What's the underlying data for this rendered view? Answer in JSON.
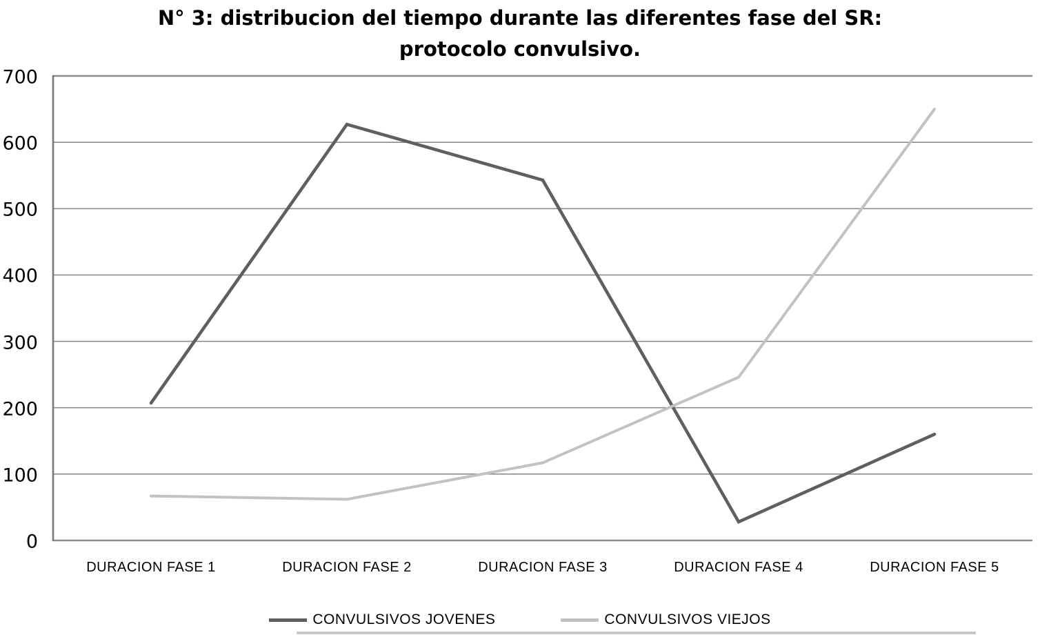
{
  "title": {
    "line1": "N° 3: distribucion del tiempo durante las diferentes fase del SR:",
    "line2": "protocolo convulsivo."
  },
  "chart_data": {
    "type": "line",
    "categories": [
      "DURACION FASE 1",
      "DURACION FASE 2",
      "DURACION FASE 3",
      "DURACION FASE 4",
      "DURACION FASE 5"
    ],
    "series": [
      {
        "name": "CONVULSIVOS JOVENES",
        "color": "#5f5f5f",
        "values": [
          207,
          627,
          543,
          28,
          160
        ]
      },
      {
        "name": "CONVULSIVOS VIEJOS",
        "color": "#c2c2c2",
        "values": [
          67,
          62,
          117,
          246,
          650
        ]
      }
    ],
    "yticks": [
      0,
      100,
      200,
      300,
      400,
      500,
      600,
      700
    ],
    "ylim": [
      0,
      700
    ],
    "xlabel": "",
    "ylabel": "",
    "grid": true,
    "legend_position": "bottom"
  },
  "colors": {
    "background": "#ffffff",
    "grid": "#8c8c8c",
    "axis": "#7a7a7a",
    "text": "#000000"
  }
}
